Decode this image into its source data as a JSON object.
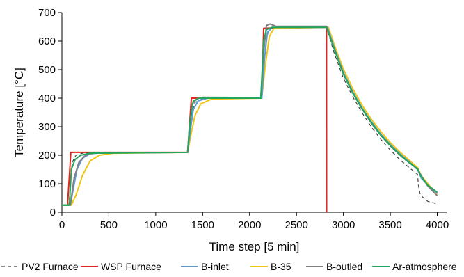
{
  "chart_data": {
    "type": "line",
    "title": "",
    "xlabel": "Time step [5 min]",
    "ylabel": "Temperature [°C]",
    "xlim": [
      0,
      4100
    ],
    "ylim": [
      0,
      700
    ],
    "x_ticks": [
      0,
      500,
      1000,
      1500,
      2000,
      2500,
      3000,
      3500,
      4000
    ],
    "y_ticks": [
      0,
      100,
      200,
      300,
      400,
      500,
      600,
      700
    ],
    "grid": false,
    "legend_position": "bottom",
    "series": [
      {
        "name": "PV2 Furnace",
        "color": "#404040",
        "dash": "dashed",
        "points": [
          [
            0,
            25
          ],
          [
            75,
            25
          ],
          [
            110,
            175
          ],
          [
            150,
            200
          ],
          [
            220,
            207
          ],
          [
            400,
            209
          ],
          [
            1340,
            210
          ],
          [
            1360,
            260
          ],
          [
            1380,
            340
          ],
          [
            1420,
            385
          ],
          [
            1500,
            398
          ],
          [
            1700,
            400
          ],
          [
            2120,
            400
          ],
          [
            2150,
            500
          ],
          [
            2180,
            615
          ],
          [
            2220,
            645
          ],
          [
            2300,
            648
          ],
          [
            2820,
            648
          ],
          [
            2900,
            560
          ],
          [
            3000,
            470
          ],
          [
            3100,
            405
          ],
          [
            3200,
            348
          ],
          [
            3300,
            298
          ],
          [
            3400,
            255
          ],
          [
            3500,
            218
          ],
          [
            3600,
            185
          ],
          [
            3700,
            157
          ],
          [
            3790,
            133
          ],
          [
            3800,
            95
          ],
          [
            3820,
            60
          ],
          [
            3900,
            38
          ],
          [
            4000,
            30
          ]
        ]
      },
      {
        "name": "WSP Furnace",
        "color": "#e4231d",
        "dash": "solid",
        "points": [
          [
            0,
            25
          ],
          [
            60,
            25
          ],
          [
            95,
            210
          ],
          [
            1340,
            210
          ],
          [
            1380,
            400
          ],
          [
            2130,
            400
          ],
          [
            2150,
            645
          ],
          [
            2820,
            650
          ],
          [
            2821,
            0
          ]
        ]
      },
      {
        "name": "B-inlet",
        "color": "#5b9bd5",
        "dash": "solid",
        "points": [
          [
            0,
            25
          ],
          [
            90,
            25
          ],
          [
            120,
            80
          ],
          [
            160,
            150
          ],
          [
            220,
            190
          ],
          [
            300,
            205
          ],
          [
            450,
            209
          ],
          [
            1340,
            210
          ],
          [
            1370,
            290
          ],
          [
            1400,
            360
          ],
          [
            1450,
            390
          ],
          [
            1550,
            400
          ],
          [
            2130,
            400
          ],
          [
            2160,
            540
          ],
          [
            2190,
            630
          ],
          [
            2240,
            648
          ],
          [
            2830,
            648
          ],
          [
            2900,
            580
          ],
          [
            3000,
            490
          ],
          [
            3100,
            422
          ],
          [
            3200,
            365
          ],
          [
            3300,
            316
          ],
          [
            3400,
            273
          ],
          [
            3500,
            237
          ],
          [
            3600,
            205
          ],
          [
            3700,
            177
          ],
          [
            3790,
            150
          ],
          [
            3830,
            120
          ],
          [
            3900,
            95
          ],
          [
            4000,
            67
          ]
        ]
      },
      {
        "name": "B-35",
        "color": "#f2c412",
        "dash": "solid",
        "points": [
          [
            0,
            25
          ],
          [
            100,
            25
          ],
          [
            150,
            60
          ],
          [
            220,
            130
          ],
          [
            300,
            180
          ],
          [
            400,
            200
          ],
          [
            550,
            207
          ],
          [
            1340,
            210
          ],
          [
            1380,
            280
          ],
          [
            1420,
            340
          ],
          [
            1480,
            380
          ],
          [
            1600,
            397
          ],
          [
            2130,
            400
          ],
          [
            2170,
            520
          ],
          [
            2210,
            615
          ],
          [
            2260,
            645
          ],
          [
            2840,
            648
          ],
          [
            2900,
            590
          ],
          [
            3000,
            502
          ],
          [
            3100,
            433
          ],
          [
            3200,
            375
          ],
          [
            3300,
            325
          ],
          [
            3400,
            282
          ],
          [
            3500,
            244
          ],
          [
            3600,
            212
          ],
          [
            3700,
            183
          ],
          [
            3790,
            157
          ],
          [
            3830,
            128
          ],
          [
            3900,
            100
          ],
          [
            4000,
            62
          ]
        ]
      },
      {
        "name": "B-outled",
        "color": "#808080",
        "dash": "solid",
        "points": [
          [
            0,
            25
          ],
          [
            90,
            25
          ],
          [
            130,
            120
          ],
          [
            180,
            175
          ],
          [
            250,
            200
          ],
          [
            350,
            208
          ],
          [
            1340,
            210
          ],
          [
            1360,
            300
          ],
          [
            1390,
            380
          ],
          [
            1440,
            398
          ],
          [
            1500,
            403
          ],
          [
            2120,
            402
          ],
          [
            2150,
            560
          ],
          [
            2180,
            655
          ],
          [
            2220,
            660
          ],
          [
            2280,
            652
          ],
          [
            2820,
            652
          ],
          [
            2900,
            575
          ],
          [
            3000,
            485
          ],
          [
            3100,
            418
          ],
          [
            3200,
            361
          ],
          [
            3300,
            311
          ],
          [
            3400,
            269
          ],
          [
            3500,
            233
          ],
          [
            3600,
            201
          ],
          [
            3700,
            174
          ],
          [
            3790,
            153
          ],
          [
            3830,
            128
          ],
          [
            3900,
            92
          ],
          [
            4000,
            58
          ]
        ]
      },
      {
        "name": "Ar-atmosphere",
        "color": "#21a65b",
        "dash": "solid",
        "points": [
          [
            0,
            25
          ],
          [
            80,
            25
          ],
          [
            100,
            150
          ],
          [
            140,
            185
          ],
          [
            200,
            200
          ],
          [
            300,
            207
          ],
          [
            1340,
            210
          ],
          [
            1370,
            330
          ],
          [
            1400,
            390
          ],
          [
            1460,
            400
          ],
          [
            2120,
            400
          ],
          [
            2150,
            600
          ],
          [
            2180,
            640
          ],
          [
            2240,
            648
          ],
          [
            2820,
            648
          ],
          [
            2900,
            575
          ],
          [
            3000,
            485
          ],
          [
            3100,
            418
          ],
          [
            3200,
            362
          ],
          [
            3300,
            313
          ],
          [
            3400,
            270
          ],
          [
            3500,
            234
          ],
          [
            3600,
            202
          ],
          [
            3700,
            175
          ],
          [
            3790,
            152
          ],
          [
            3830,
            125
          ],
          [
            3900,
            95
          ],
          [
            4000,
            70
          ]
        ]
      }
    ]
  }
}
